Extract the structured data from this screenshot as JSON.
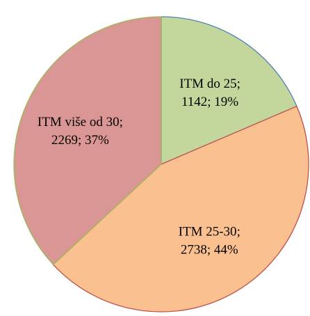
{
  "chart_data": {
    "type": "pie",
    "categories": [
      "ITM do 25",
      "ITM 25-30",
      "ITM više od 30"
    ],
    "values": [
      1142,
      2738,
      2269
    ],
    "value_labels": [
      "1142; 19%",
      "2738; 44%",
      "2269; 37%"
    ],
    "separator": ";",
    "colors": [
      "#c3d69b",
      "#fac090",
      "#d99694"
    ],
    "edge_colors": [
      "#4f81bd",
      "#c0504d",
      "#9bbb59"
    ]
  }
}
